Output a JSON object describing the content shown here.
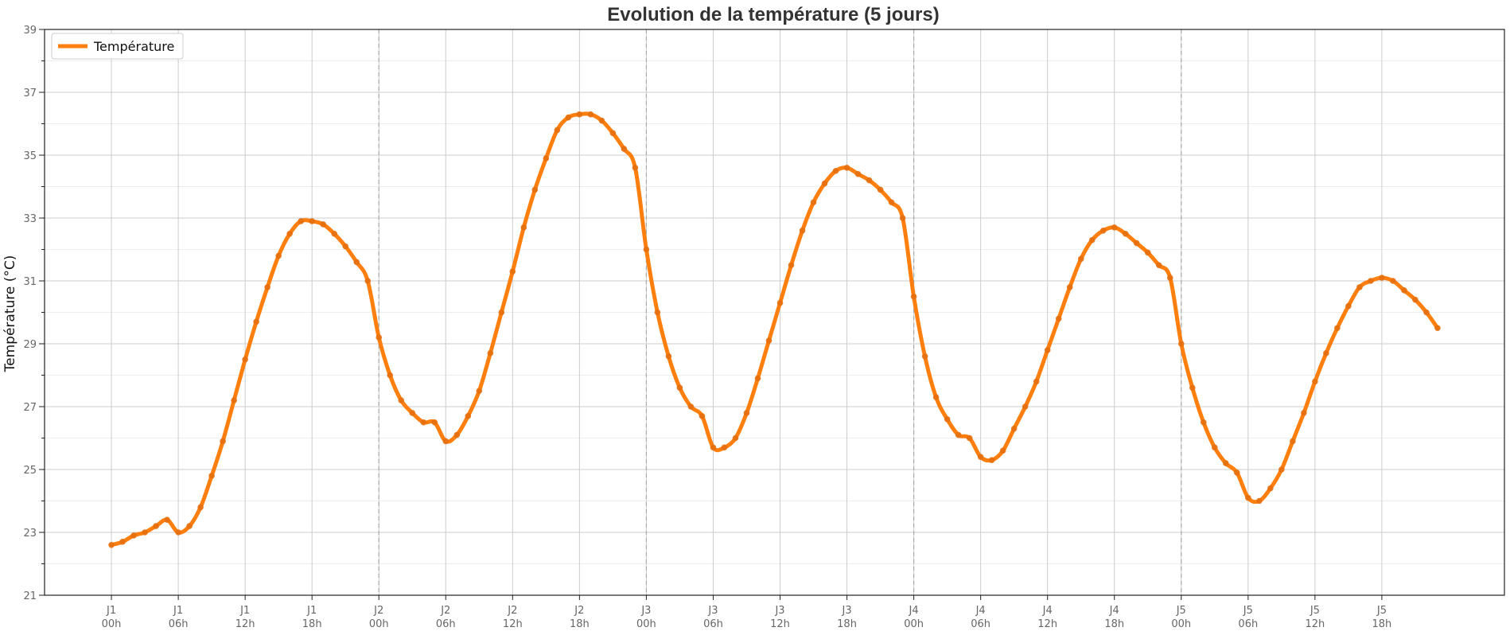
{
  "chart_data": {
    "type": "line",
    "title": "Evolution de la température (5 jours)",
    "xlabel": "",
    "ylabel": "Température (°C)",
    "ylim": [
      21,
      39
    ],
    "yticks": [
      21,
      23,
      25,
      27,
      29,
      31,
      33,
      35,
      37,
      39
    ],
    "grid": true,
    "legend_position": "top-left",
    "colors": {
      "line": "#ff7f0e",
      "grid_major": "#cccccc",
      "grid_minor": "#eeeeee",
      "day_separator": "#aaaaaa",
      "axis": "#222222"
    },
    "x_unit": "hours",
    "x_ticks": [
      {
        "x": 0,
        "day": "J1",
        "hour": "00h"
      },
      {
        "x": 6,
        "day": "J1",
        "hour": "06h"
      },
      {
        "x": 12,
        "day": "J1",
        "hour": "12h"
      },
      {
        "x": 18,
        "day": "J1",
        "hour": "18h"
      },
      {
        "x": 24,
        "day": "J2",
        "hour": "00h"
      },
      {
        "x": 30,
        "day": "J2",
        "hour": "06h"
      },
      {
        "x": 36,
        "day": "J2",
        "hour": "12h"
      },
      {
        "x": 42,
        "day": "J2",
        "hour": "18h"
      },
      {
        "x": 48,
        "day": "J3",
        "hour": "00h"
      },
      {
        "x": 54,
        "day": "J3",
        "hour": "06h"
      },
      {
        "x": 60,
        "day": "J3",
        "hour": "12h"
      },
      {
        "x": 66,
        "day": "J3",
        "hour": "18h"
      },
      {
        "x": 72,
        "day": "J4",
        "hour": "00h"
      },
      {
        "x": 78,
        "day": "J4",
        "hour": "06h"
      },
      {
        "x": 84,
        "day": "J4",
        "hour": "12h"
      },
      {
        "x": 90,
        "day": "J4",
        "hour": "18h"
      },
      {
        "x": 96,
        "day": "J5",
        "hour": "00h"
      },
      {
        "x": 102,
        "day": "J5",
        "hour": "06h"
      },
      {
        "x": 108,
        "day": "J5",
        "hour": "12h"
      },
      {
        "x": 114,
        "day": "J5",
        "hour": "18h"
      }
    ],
    "xlim": [
      -6,
      125
    ],
    "day_separators": [
      24,
      48,
      72,
      96
    ],
    "series": [
      {
        "name": "Température",
        "color": "#ff7f0e",
        "x": [
          0,
          1,
          2,
          3,
          4,
          5,
          6,
          7,
          8,
          9,
          10,
          11,
          12,
          13,
          14,
          15,
          16,
          17,
          18,
          19,
          20,
          21,
          22,
          23,
          24,
          25,
          26,
          27,
          28,
          29,
          30,
          31,
          32,
          33,
          34,
          35,
          36,
          37,
          38,
          39,
          40,
          41,
          42,
          43,
          44,
          45,
          46,
          47,
          48,
          49,
          50,
          51,
          52,
          53,
          54,
          55,
          56,
          57,
          58,
          59,
          60,
          61,
          62,
          63,
          64,
          65,
          66,
          67,
          68,
          69,
          70,
          71,
          72,
          73,
          74,
          75,
          76,
          77,
          78,
          79,
          80,
          81,
          82,
          83,
          84,
          85,
          86,
          87,
          88,
          89,
          90,
          91,
          92,
          93,
          94,
          95,
          96,
          97,
          98,
          99,
          100,
          101,
          102,
          103,
          104,
          105,
          106,
          107,
          108,
          109,
          110,
          111,
          112,
          113,
          114,
          115,
          116,
          117,
          118,
          119
        ],
        "y": [
          22.6,
          22.7,
          22.9,
          23.0,
          23.2,
          23.4,
          23.0,
          23.2,
          23.8,
          24.8,
          25.9,
          27.2,
          28.5,
          29.7,
          30.8,
          31.8,
          32.5,
          32.9,
          32.9,
          32.8,
          32.5,
          32.1,
          31.6,
          31.0,
          29.2,
          28.0,
          27.2,
          26.8,
          26.5,
          26.5,
          25.9,
          26.1,
          26.7,
          27.5,
          28.7,
          30.0,
          31.3,
          32.7,
          33.9,
          34.9,
          35.8,
          36.2,
          36.3,
          36.3,
          36.1,
          35.7,
          35.2,
          34.6,
          32.0,
          30.0,
          28.6,
          27.6,
          27.0,
          26.7,
          25.7,
          25.7,
          26.0,
          26.8,
          27.9,
          29.1,
          30.3,
          31.5,
          32.6,
          33.5,
          34.1,
          34.5,
          34.6,
          34.4,
          34.2,
          33.9,
          33.5,
          33.0,
          30.5,
          28.6,
          27.3,
          26.6,
          26.1,
          26.0,
          25.4,
          25.3,
          25.6,
          26.3,
          27.0,
          27.8,
          28.8,
          29.8,
          30.8,
          31.7,
          32.3,
          32.6,
          32.7,
          32.5,
          32.2,
          31.9,
          31.5,
          31.1,
          29.0,
          27.6,
          26.5,
          25.7,
          25.2,
          24.9,
          24.1,
          24.0,
          24.4,
          25.0,
          25.9,
          26.8,
          27.8,
          28.7,
          29.5,
          30.2,
          30.8,
          31.0,
          31.1,
          31.0,
          30.7,
          30.4,
          30.0,
          29.5
        ]
      }
    ]
  }
}
